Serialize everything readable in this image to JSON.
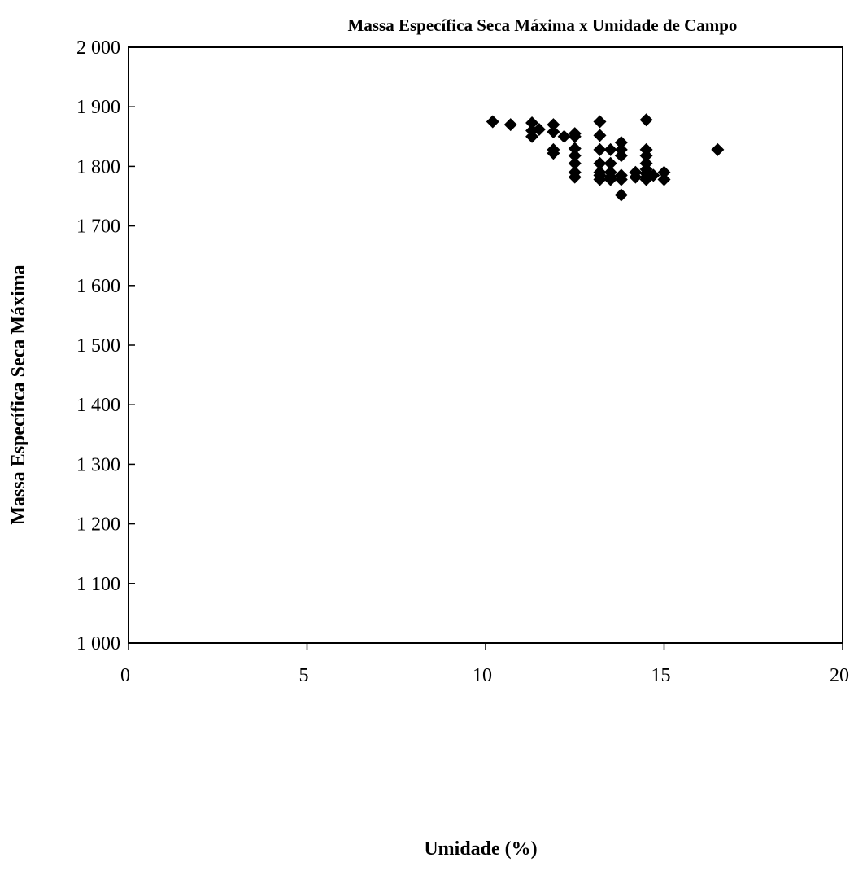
{
  "chart_data": {
    "type": "scatter",
    "title": "Massa Específica Seca Máxima x Umidade de Campo",
    "xlabel": "Umidade (%)",
    "ylabel": "Massa Específica Seca Máxima",
    "xlim": [
      0,
      20
    ],
    "ylim": [
      1000,
      2000
    ],
    "x_ticks": [
      0,
      5,
      10,
      15,
      20
    ],
    "x_tick_labels": [
      "0",
      "5",
      "10",
      "15",
      "20"
    ],
    "y_ticks": [
      1000,
      1100,
      1200,
      1300,
      1400,
      1500,
      1600,
      1700,
      1800,
      1900,
      2000
    ],
    "y_tick_labels": [
      "1 000",
      "1 100",
      "1 200",
      "1 300",
      "1 400",
      "1 500",
      "1 600",
      "1 700",
      "1 800",
      "1 900",
      "2 000"
    ],
    "grid": false,
    "legend": "none",
    "marker": "diamond",
    "marker_color": "#000000",
    "series": [
      {
        "x": [
          10.2,
          10.7,
          11.3,
          11.3,
          11.3,
          11.5,
          11.9,
          11.9,
          11.9,
          11.9,
          12.2,
          12.5,
          12.5,
          12.5,
          12.5,
          12.5,
          12.5,
          12.5,
          13.2,
          13.2,
          13.2,
          13.2,
          13.2,
          13.2,
          13.2,
          13.5,
          13.5,
          13.5,
          13.5,
          13.5,
          13.8,
          13.8,
          13.8,
          13.8,
          13.8,
          13.8,
          14.2,
          14.2,
          14.5,
          14.5,
          14.5,
          14.5,
          14.5,
          14.5,
          14.5,
          14.5,
          14.7,
          15.0,
          15.0,
          16.5
        ],
        "y": [
          1875,
          1870,
          1873,
          1860,
          1850,
          1862,
          1870,
          1858,
          1828,
          1822,
          1850,
          1855,
          1850,
          1830,
          1818,
          1805,
          1790,
          1782,
          1875,
          1852,
          1828,
          1805,
          1790,
          1785,
          1778,
          1828,
          1805,
          1790,
          1782,
          1778,
          1840,
          1828,
          1818,
          1785,
          1778,
          1752,
          1790,
          1782,
          1878,
          1828,
          1818,
          1805,
          1795,
          1788,
          1782,
          1778,
          1785,
          1790,
          1778,
          1828
        ]
      }
    ]
  }
}
